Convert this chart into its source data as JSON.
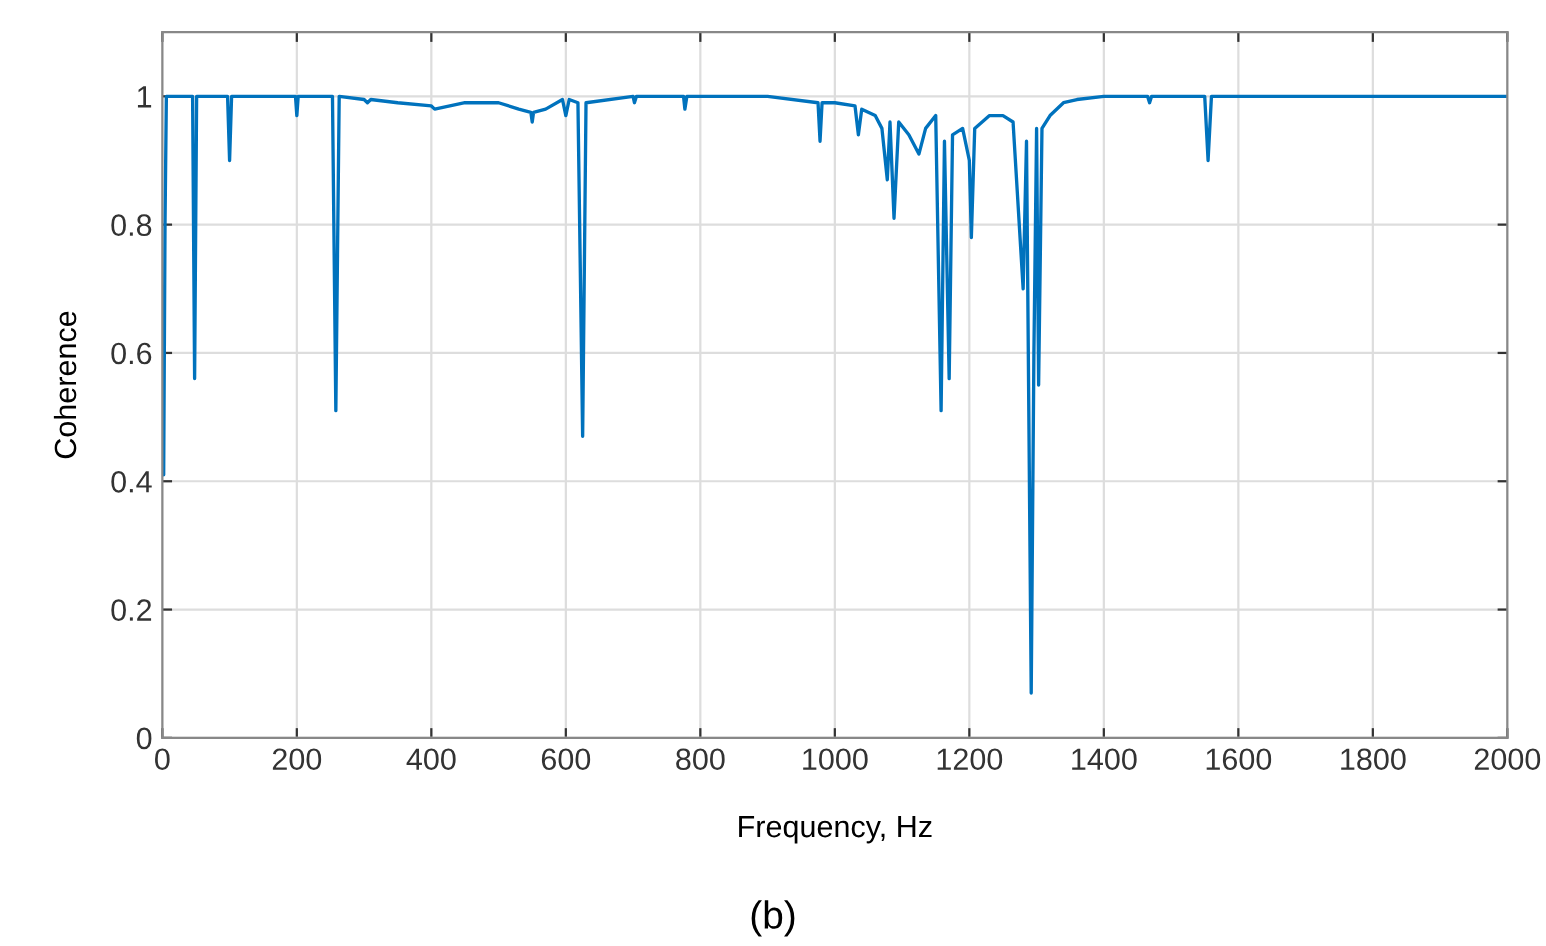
{
  "chart_data": {
    "type": "line",
    "xlabel": "Frequency, Hz",
    "ylabel": "Coherence",
    "annotations": [
      "(b)"
    ],
    "xlim": [
      0,
      2000
    ],
    "ylim": [
      0,
      1.1
    ],
    "xticks": [
      0,
      200,
      400,
      600,
      800,
      1000,
      1200,
      1400,
      1600,
      1800,
      2000
    ],
    "yticks": [
      0,
      0.2,
      0.4,
      0.6,
      0.8,
      1
    ],
    "grid": true,
    "marker": "none",
    "line_style": "solid",
    "series": [
      {
        "color": "#0072bd",
        "x": [
          0,
          2,
          4,
          6,
          45,
          48,
          51,
          97,
          100,
          103,
          198,
          200,
          202,
          253,
          258,
          263,
          300,
          305,
          310,
          350,
          400,
          405,
          450,
          500,
          530,
          548,
          550,
          552,
          570,
          595,
          600,
          605,
          618,
          625,
          630,
          700,
          702,
          705,
          775,
          777,
          780,
          900,
          975,
          978,
          981,
          1000,
          1030,
          1035,
          1040,
          1060,
          1070,
          1078,
          1082,
          1088,
          1095,
          1110,
          1125,
          1135,
          1150,
          1158,
          1163,
          1170,
          1175,
          1190,
          1200,
          1203,
          1208,
          1230,
          1250,
          1265,
          1280,
          1285,
          1292,
          1296,
          1300,
          1303,
          1308,
          1320,
          1340,
          1360,
          1400,
          1465,
          1468,
          1471,
          1550,
          1555,
          1560,
          2000
        ],
        "values": [
          0.6,
          0.41,
          0.8,
          1.0,
          1.0,
          0.56,
          1.0,
          1.0,
          0.9,
          1.0,
          1.0,
          0.97,
          1.0,
          1.0,
          0.51,
          1.0,
          0.995,
          0.99,
          0.995,
          0.99,
          0.985,
          0.98,
          0.99,
          0.99,
          0.98,
          0.975,
          0.96,
          0.975,
          0.98,
          0.995,
          0.97,
          0.995,
          0.99,
          0.47,
          0.99,
          1.0,
          0.99,
          1.0,
          1.0,
          0.98,
          1.0,
          1.0,
          0.99,
          0.93,
          0.99,
          0.99,
          0.985,
          0.94,
          0.98,
          0.97,
          0.95,
          0.87,
          0.96,
          0.81,
          0.96,
          0.94,
          0.91,
          0.95,
          0.97,
          0.51,
          0.93,
          0.56,
          0.94,
          0.95,
          0.9,
          0.78,
          0.95,
          0.97,
          0.97,
          0.96,
          0.7,
          0.93,
          0.07,
          0.6,
          0.95,
          0.55,
          0.95,
          0.97,
          0.99,
          0.995,
          1.0,
          1.0,
          0.99,
          1.0,
          1.0,
          0.9,
          1.0,
          1.0
        ]
      }
    ]
  }
}
